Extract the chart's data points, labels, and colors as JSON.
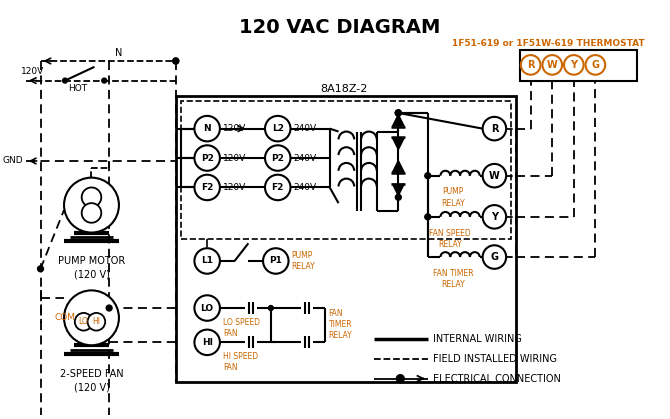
{
  "title": "120 VAC DIAGRAM",
  "bg_color": "#ffffff",
  "text_color": "#000000",
  "orange_color": "#cc6600",
  "thermostat_label": "1F51-619 or 1F51W-619 THERMOSTAT",
  "controller_label": "8A18Z-2",
  "terminals_rwgy": [
    "R",
    "W",
    "Y",
    "G"
  ],
  "left_terms": [
    "N",
    "P2",
    "F2"
  ],
  "right_terms": [
    "L2",
    "P2",
    "F2"
  ],
  "left_volts": [
    "120V",
    "120V",
    "120V"
  ],
  "right_volts": [
    "240V",
    "240V",
    "240V"
  ],
  "pump_motor_label": "PUMP MOTOR\n(120 V)",
  "fan_label": "2-SPEED FAN\n(120 V)",
  "lo_speed_fan": "LO SPEED\nFAN",
  "hi_speed_fan": "HI SPEED\nFAN",
  "pump_relay_txt": "PUMP\nRELAY",
  "fan_speed_relay_txt": "FAN SPEED\nRELAY",
  "fan_timer_relay_txt": "FAN TIMER\nRELAY",
  "fan_timer_relay2": "FAN\nTIMER\nRELAY",
  "internal_wiring": "INTERNAL WIRING",
  "field_wiring": "FIELD INSTALLED WIRING",
  "elec_conn": "ELECTRICAL CONNECTION"
}
